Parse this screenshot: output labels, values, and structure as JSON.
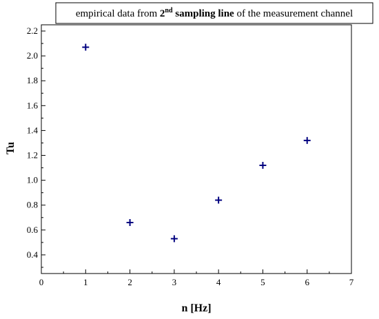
{
  "chart_data": {
    "type": "scatter",
    "title": {
      "prefix": "empirical data from ",
      "ordinal_num": "2",
      "ordinal_suffix": "nd",
      "bold_part": " sampling line",
      "suffix": " of the measurement channel"
    },
    "xlabel": "n [Hz]",
    "ylabel": "Tu",
    "xlim": [
      0,
      7
    ],
    "ylim": [
      0.25,
      2.25
    ],
    "x_ticks": [
      0,
      1,
      2,
      3,
      4,
      5,
      6,
      7
    ],
    "y_ticks": [
      0.4,
      0.6,
      0.8,
      1.0,
      1.2,
      1.4,
      1.6,
      1.8,
      2.0,
      2.2
    ],
    "x_tick_labels": [
      "0",
      "1",
      "2",
      "3",
      "4",
      "5",
      "6",
      "7"
    ],
    "y_tick_labels": [
      "0.4",
      "0.6",
      "0.8",
      "1.0",
      "1.2",
      "1.4",
      "1.6",
      "1.8",
      "2.0",
      "2.2"
    ],
    "marker": "plus",
    "marker_color": "#00007f",
    "legend": "none",
    "grid": false,
    "series": [
      {
        "x": [
          1,
          2,
          3,
          4,
          5,
          6
        ],
        "y": [
          2.07,
          0.66,
          0.53,
          0.84,
          1.12,
          1.32
        ]
      }
    ]
  }
}
